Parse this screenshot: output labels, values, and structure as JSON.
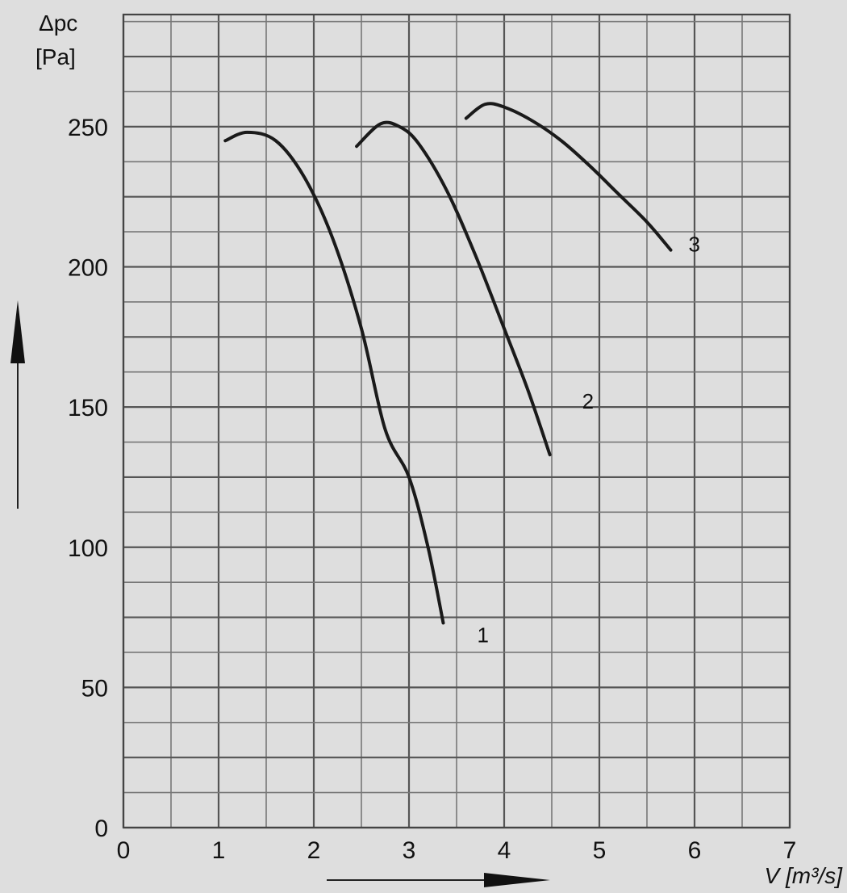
{
  "chart_data": {
    "type": "line",
    "title": "",
    "ylabel_line1": "Δpc",
    "ylabel_line2": "[Pa]",
    "xlabel": "V [m³/s]",
    "xlim": [
      0,
      7
    ],
    "ylim": [
      0,
      290
    ],
    "x_ticks": [
      0,
      1,
      2,
      3,
      4,
      5,
      6,
      7
    ],
    "y_ticks": [
      0,
      50,
      100,
      150,
      200,
      250
    ],
    "grid": true,
    "series": [
      {
        "name": "1",
        "x": [
          1.07,
          1.3,
          1.6,
          1.9,
          2.2,
          2.5,
          2.75,
          3.0,
          3.2,
          3.36
        ],
        "y": [
          245,
          248,
          245,
          232,
          210,
          178,
          142,
          125,
          100,
          73
        ]
      },
      {
        "name": "2",
        "x": [
          2.45,
          2.7,
          2.9,
          3.1,
          3.4,
          3.7,
          4.0,
          4.25,
          4.48
        ],
        "y": [
          243,
          251,
          250,
          244,
          227,
          204,
          178,
          156,
          133
        ]
      },
      {
        "name": "3",
        "x": [
          3.6,
          3.8,
          4.0,
          4.3,
          4.6,
          4.9,
          5.2,
          5.5,
          5.75
        ],
        "y": [
          253,
          258,
          257,
          252,
          245,
          236,
          226,
          216,
          206
        ]
      }
    ]
  }
}
